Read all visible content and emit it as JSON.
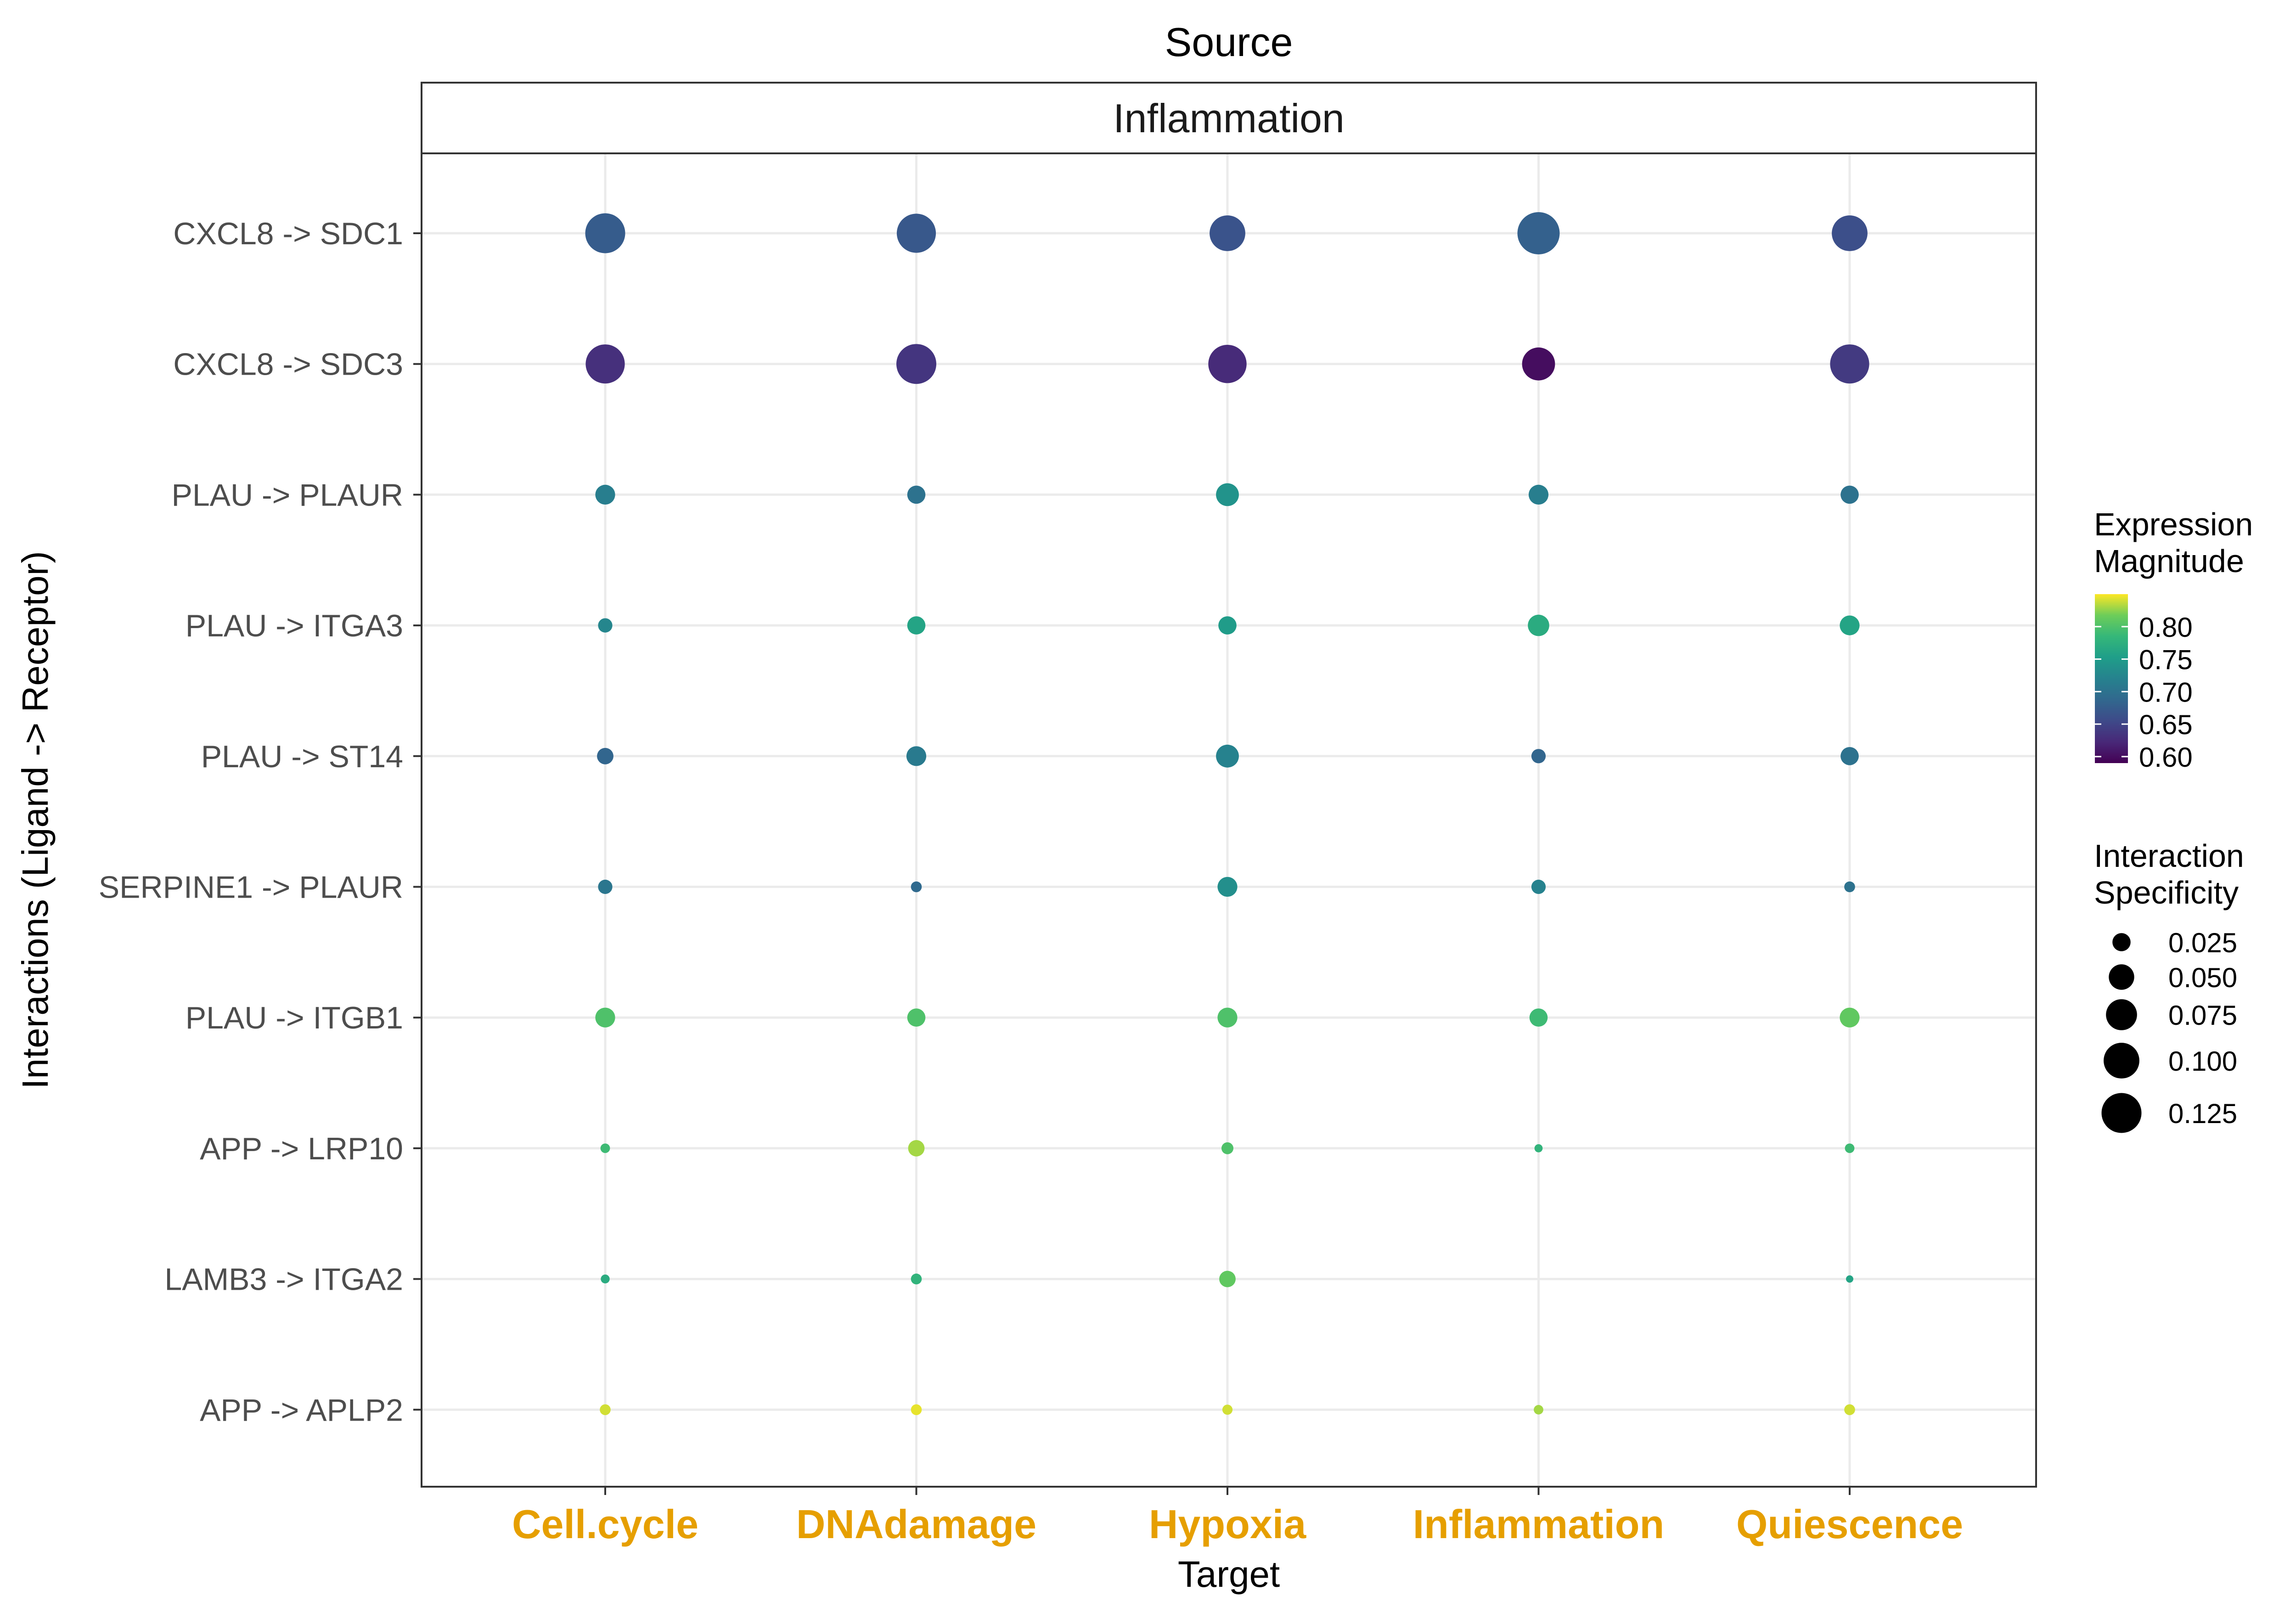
{
  "chart_data": {
    "type": "scatter",
    "title": "Source",
    "facet_label": "Inflammation",
    "xlabel": "Target",
    "ylabel": "Interactions (Ligand -> Receptor)",
    "categories": [
      "Cell.cycle",
      "DNAdamage",
      "Hypoxia",
      "Inflammation",
      "Quiescence"
    ],
    "category_color": "#E69F00",
    "interactions": [
      "CXCL8 -> SDC1",
      "CXCL8 -> SDC3",
      "PLAU -> PLAUR",
      "PLAU -> ITGA3",
      "PLAU -> ST14",
      "SERPINE1 -> PLAUR",
      "PLAU -> ITGB1",
      "APP -> LRP10",
      "LAMB3 -> ITGA2",
      "APP -> APLP2"
    ],
    "points": [
      {
        "interaction": "CXCL8 -> SDC1",
        "target": "Cell.cycle",
        "magnitude": 0.675,
        "specificity": 0.125
      },
      {
        "interaction": "CXCL8 -> SDC1",
        "target": "DNAdamage",
        "magnitude": 0.67,
        "specificity": 0.12
      },
      {
        "interaction": "CXCL8 -> SDC1",
        "target": "Hypoxia",
        "magnitude": 0.665,
        "specificity": 0.1
      },
      {
        "interaction": "CXCL8 -> SDC1",
        "target": "Inflammation",
        "magnitude": 0.68,
        "specificity": 0.14
      },
      {
        "interaction": "CXCL8 -> SDC1",
        "target": "Quiescence",
        "magnitude": 0.66,
        "specificity": 0.1
      },
      {
        "interaction": "CXCL8 -> SDC3",
        "target": "Cell.cycle",
        "magnitude": 0.63,
        "specificity": 0.12
      },
      {
        "interaction": "CXCL8 -> SDC3",
        "target": "DNAdamage",
        "magnitude": 0.635,
        "specificity": 0.125
      },
      {
        "interaction": "CXCL8 -> SDC3",
        "target": "Hypoxia",
        "magnitude": 0.625,
        "specificity": 0.115
      },
      {
        "interaction": "CXCL8 -> SDC3",
        "target": "Inflammation",
        "magnitude": 0.6,
        "specificity": 0.085
      },
      {
        "interaction": "CXCL8 -> SDC3",
        "target": "Quiescence",
        "magnitude": 0.64,
        "specificity": 0.12
      },
      {
        "interaction": "PLAU -> PLAUR",
        "target": "Cell.cycle",
        "magnitude": 0.715,
        "specificity": 0.03
      },
      {
        "interaction": "PLAU -> PLAUR",
        "target": "DNAdamage",
        "magnitude": 0.7,
        "specificity": 0.025
      },
      {
        "interaction": "PLAU -> PLAUR",
        "target": "Hypoxia",
        "magnitude": 0.74,
        "specificity": 0.04
      },
      {
        "interaction": "PLAU -> PLAUR",
        "target": "Inflammation",
        "magnitude": 0.715,
        "specificity": 0.03
      },
      {
        "interaction": "PLAU -> PLAUR",
        "target": "Quiescence",
        "magnitude": 0.7,
        "specificity": 0.025
      },
      {
        "interaction": "PLAU -> ITGA3",
        "target": "Cell.cycle",
        "magnitude": 0.725,
        "specificity": 0.015
      },
      {
        "interaction": "PLAU -> ITGA3",
        "target": "DNAdamage",
        "magnitude": 0.76,
        "specificity": 0.025
      },
      {
        "interaction": "PLAU -> ITGA3",
        "target": "Hypoxia",
        "magnitude": 0.75,
        "specificity": 0.025
      },
      {
        "interaction": "PLAU -> ITGA3",
        "target": "Inflammation",
        "magnitude": 0.77,
        "specificity": 0.035
      },
      {
        "interaction": "PLAU -> ITGA3",
        "target": "Quiescence",
        "magnitude": 0.76,
        "specificity": 0.03
      },
      {
        "interaction": "PLAU -> ST14",
        "target": "Cell.cycle",
        "magnitude": 0.685,
        "specificity": 0.02
      },
      {
        "interaction": "PLAU -> ST14",
        "target": "DNAdamage",
        "magnitude": 0.71,
        "specificity": 0.03
      },
      {
        "interaction": "PLAU -> ST14",
        "target": "Hypoxia",
        "magnitude": 0.72,
        "specificity": 0.04
      },
      {
        "interaction": "PLAU -> ST14",
        "target": "Inflammation",
        "magnitude": 0.685,
        "specificity": 0.015
      },
      {
        "interaction": "PLAU -> ST14",
        "target": "Quiescence",
        "magnitude": 0.7,
        "specificity": 0.025
      },
      {
        "interaction": "SERPINE1 -> PLAUR",
        "target": "Cell.cycle",
        "magnitude": 0.705,
        "specificity": 0.015
      },
      {
        "interaction": "SERPINE1 -> PLAUR",
        "target": "DNAdamage",
        "magnitude": 0.69,
        "specificity": 0.008
      },
      {
        "interaction": "SERPINE1 -> PLAUR",
        "target": "Hypoxia",
        "magnitude": 0.735,
        "specificity": 0.03
      },
      {
        "interaction": "SERPINE1 -> PLAUR",
        "target": "Inflammation",
        "magnitude": 0.72,
        "specificity": 0.015
      },
      {
        "interaction": "SERPINE1 -> PLAUR",
        "target": "Quiescence",
        "magnitude": 0.7,
        "specificity": 0.008
      },
      {
        "interaction": "PLAU -> ITGB1",
        "target": "Cell.cycle",
        "magnitude": 0.8,
        "specificity": 0.03
      },
      {
        "interaction": "PLAU -> ITGB1",
        "target": "DNAdamage",
        "magnitude": 0.8,
        "specificity": 0.025
      },
      {
        "interaction": "PLAU -> ITGB1",
        "target": "Hypoxia",
        "magnitude": 0.8,
        "specificity": 0.03
      },
      {
        "interaction": "PLAU -> ITGB1",
        "target": "Inflammation",
        "magnitude": 0.79,
        "specificity": 0.025
      },
      {
        "interaction": "PLAU -> ITGB1",
        "target": "Quiescence",
        "magnitude": 0.81,
        "specificity": 0.03
      },
      {
        "interaction": "APP -> LRP10",
        "target": "Cell.cycle",
        "magnitude": 0.79,
        "specificity": 0.006
      },
      {
        "interaction": "APP -> LRP10",
        "target": "DNAdamage",
        "magnitude": 0.83,
        "specificity": 0.02
      },
      {
        "interaction": "APP -> LRP10",
        "target": "Hypoxia",
        "magnitude": 0.8,
        "specificity": 0.01
      },
      {
        "interaction": "APP -> LRP10",
        "target": "Inflammation",
        "magnitude": 0.78,
        "specificity": 0.004
      },
      {
        "interaction": "APP -> LRP10",
        "target": "Quiescence",
        "magnitude": 0.79,
        "specificity": 0.006
      },
      {
        "interaction": "LAMB3 -> ITGA2",
        "target": "Cell.cycle",
        "magnitude": 0.77,
        "specificity": 0.005
      },
      {
        "interaction": "LAMB3 -> ITGA2",
        "target": "DNAdamage",
        "magnitude": 0.78,
        "specificity": 0.008
      },
      {
        "interaction": "LAMB3 -> ITGA2",
        "target": "Hypoxia",
        "magnitude": 0.81,
        "specificity": 0.02
      },
      {
        "interaction": "LAMB3 -> ITGA2",
        "target": "Quiescence",
        "magnitude": 0.76,
        "specificity": 0.003
      },
      {
        "interaction": "APP -> APLP2",
        "target": "Cell.cycle",
        "magnitude": 0.84,
        "specificity": 0.008
      },
      {
        "interaction": "APP -> APLP2",
        "target": "DNAdamage",
        "magnitude": 0.845,
        "specificity": 0.008
      },
      {
        "interaction": "APP -> APLP2",
        "target": "Hypoxia",
        "magnitude": 0.84,
        "specificity": 0.007
      },
      {
        "interaction": "APP -> APLP2",
        "target": "Inflammation",
        "magnitude": 0.83,
        "specificity": 0.006
      },
      {
        "interaction": "APP -> APLP2",
        "target": "Quiescence",
        "magnitude": 0.84,
        "specificity": 0.008
      }
    ],
    "color_scale": {
      "palette": "viridis",
      "title": [
        "Expression",
        "Magnitude"
      ],
      "range": [
        0.59,
        0.85
      ],
      "ticks": [
        0.6,
        0.65,
        0.7,
        0.75,
        0.8
      ],
      "tick_labels": [
        "0.60",
        "0.65",
        "0.70",
        "0.75",
        "0.80"
      ]
    },
    "size_scale": {
      "title": [
        "Interaction",
        "Specificity"
      ],
      "range": [
        0.003,
        0.14
      ],
      "ticks": [
        0.025,
        0.05,
        0.075,
        0.1,
        0.125
      ],
      "tick_labels": [
        "0.025",
        "0.050",
        "0.075",
        "0.100",
        "0.125"
      ]
    },
    "grid": true,
    "legend_position": "right"
  }
}
